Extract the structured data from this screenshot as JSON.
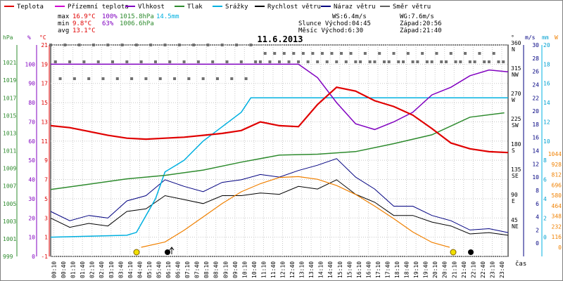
{
  "chart_data": {
    "type": "line",
    "title": "11.6.2013",
    "legend": [
      {
        "label": "Teplota",
        "color": "#e00000"
      },
      {
        "label": "Přízemní teplota",
        "color": "#d000d0"
      },
      {
        "label": "Vlhkost",
        "color": "#8000c0"
      },
      {
        "label": "Tlak",
        "color": "#2e8b2e"
      },
      {
        "label": "Srážky",
        "color": "#00b0e0"
      },
      {
        "label": "Rychlost větru",
        "color": "#000000"
      },
      {
        "label": "Náraz větru",
        "color": "#000080"
      },
      {
        "label": "Směr větru",
        "color": "#606060"
      }
    ],
    "stats": {
      "max_label": "max",
      "max_temp": "16.9°C",
      "max_hum": "100%",
      "max_press": "1015.8hPa",
      "rain": "14.5mm",
      "min_label": "min",
      "min_temp": "9.8°C",
      "min_hum": "63%",
      "min_press": "1006.6hPa",
      "avg_label": "avg",
      "avg_temp": "13.1°C",
      "ws": "WS:6.4m/s",
      "wg": "WG:7.6m/s",
      "sun": "Slunce Východ:04:45",
      "sun_set": "Západ:20:56",
      "moon": "Měsíc Východ:6:30",
      "moon_set": "Západ:21:40"
    },
    "axis_units": {
      "hpa": "hPa",
      "pct": "%",
      "celsius": "°C",
      "deg": "°",
      "ms": "m/s",
      "mm": "mm",
      "w": "W",
      "cas": "čas"
    },
    "hpa_ticks": [
      "1021",
      "1019",
      "1017",
      "1015",
      "1013",
      "1011",
      "1009",
      "1007",
      "1005",
      "1003",
      "1001",
      "999"
    ],
    "pct_ticks": [
      "100",
      "90",
      "80",
      "70",
      "60",
      "50",
      "40",
      "30",
      "20",
      "10",
      "0"
    ],
    "c_ticks": [
      "21",
      "19",
      "17",
      "15",
      "13",
      "11",
      "9",
      "7",
      "5",
      "3",
      "1",
      "-1"
    ],
    "deg_ticks": [
      "360",
      "315",
      "270",
      "225",
      "180",
      "135",
      "90",
      "45",
      ""
    ],
    "dir_ticks": [
      "N",
      "NW",
      "W",
      "SW",
      "S",
      "SE",
      "E",
      "NE",
      ""
    ],
    "ms_ticks": [
      "30",
      "28",
      "26",
      "24",
      "22",
      "20",
      "18",
      "16",
      "14",
      "12",
      "10",
      "8",
      "6",
      "4",
      "2",
      "0"
    ],
    "mm_ticks": [
      "20",
      "18",
      "16",
      "14",
      "12",
      "10",
      "8",
      "6",
      "4",
      "2",
      "0"
    ],
    "w_ticks": [
      "1044",
      "928",
      "812",
      "696",
      "580",
      "464",
      "348",
      "232",
      "116",
      "0"
    ],
    "x_ticks": [
      "00:10",
      "00:40",
      "01:10",
      "01:40",
      "02:10",
      "02:40",
      "03:10",
      "03:40",
      "04:10",
      "04:40",
      "05:10",
      "05:40",
      "06:10",
      "06:40",
      "07:10",
      "07:40",
      "08:10",
      "08:40",
      "09:10",
      "09:40",
      "10:10",
      "10:40",
      "11:10",
      "11:40",
      "12:10",
      "12:40",
      "13:10",
      "13:40",
      "14:10",
      "14:40",
      "15:10",
      "15:40",
      "16:10",
      "16:40",
      "17:10",
      "17:40",
      "18:10",
      "18:40",
      "19:10",
      "19:40",
      "20:10",
      "20:40",
      "21:10",
      "21:40",
      "22:10",
      "22:40",
      "23:10",
      "23:40"
    ],
    "series": [
      {
        "name": "Teplota",
        "unit": "°C",
        "color": "#e00000",
        "x": [
          0,
          1,
          2,
          3,
          4,
          5,
          6,
          7,
          8,
          9,
          10,
          11,
          12,
          13,
          14,
          15,
          16,
          17,
          18,
          19,
          20,
          21,
          22,
          23,
          24
        ],
        "y": [
          12.6,
          12.4,
          12.0,
          11.6,
          11.3,
          11.2,
          11.3,
          11.4,
          11.6,
          11.8,
          12.1,
          13.0,
          12.6,
          12.5,
          14.8,
          16.6,
          16.2,
          15.2,
          14.6,
          13.7,
          12.3,
          10.8,
          10.2,
          9.9,
          9.8
        ]
      },
      {
        "name": "Vlhkost",
        "unit": "%",
        "color": "#8000c0",
        "x": [
          0,
          1,
          2,
          3,
          4,
          5,
          6,
          7,
          8,
          9,
          10,
          11,
          12,
          13,
          14,
          15,
          16,
          17,
          18,
          19,
          20,
          21,
          22,
          23,
          24
        ],
        "y": [
          100,
          100,
          100,
          100,
          100,
          100,
          100,
          100,
          100,
          100,
          100,
          100,
          100,
          100,
          93,
          80,
          69,
          66,
          70,
          75,
          84,
          88,
          94,
          97,
          96
        ]
      },
      {
        "name": "Tlak",
        "unit": "hPa",
        "color": "#2e8b2e",
        "x": [
          0,
          2,
          4,
          6,
          8,
          10,
          12,
          14,
          16,
          18,
          20,
          22,
          23.8
        ],
        "y": [
          1006.6,
          1007.2,
          1007.8,
          1008.2,
          1008.8,
          1009.7,
          1010.5,
          1010.6,
          1010.9,
          1011.8,
          1012.8,
          1014.8,
          1015.3
        ]
      },
      {
        "name": "Srážky",
        "unit": "mm",
        "color": "#00b0e0",
        "x": [
          0,
          2,
          4,
          4.5,
          5.5,
          6,
          7,
          7.5,
          8,
          9,
          10,
          10.5,
          24
        ],
        "y": [
          0,
          0.1,
          0.2,
          0.5,
          4.0,
          6.8,
          8.0,
          9.0,
          10.0,
          11.5,
          13.0,
          14.5,
          14.5
        ]
      },
      {
        "name": "Rychlost větru",
        "unit": "m/s",
        "color": "#000000",
        "x": [
          0,
          1,
          2,
          3,
          4,
          5,
          6,
          7,
          8,
          9,
          10,
          11,
          12,
          13,
          14,
          15,
          16,
          17,
          18,
          19,
          20,
          21,
          22,
          23,
          24
        ],
        "y": [
          3.8,
          2.4,
          3.0,
          2.6,
          4.8,
          5.2,
          7.2,
          6.6,
          6.0,
          7.2,
          7.2,
          7.6,
          7.4,
          8.6,
          8.2,
          9.6,
          7.4,
          6.2,
          4.2,
          4.2,
          3.2,
          2.6,
          1.4,
          1.6,
          1.2
        ]
      },
      {
        "name": "Náraz větru",
        "unit": "m/s",
        "color": "#000080",
        "x": [
          0,
          1,
          2,
          3,
          4,
          5,
          6,
          7,
          8,
          9,
          10,
          11,
          12,
          13,
          14,
          15,
          16,
          17,
          18,
          19,
          20,
          21,
          22,
          23,
          24
        ],
        "y": [
          4.8,
          3.4,
          4.2,
          3.8,
          6.4,
          7.2,
          9.6,
          8.6,
          7.8,
          9.2,
          9.6,
          10.4,
          10.0,
          11.0,
          11.8,
          12.8,
          10.0,
          8.2,
          5.6,
          5.6,
          4.2,
          3.4,
          2.0,
          2.2,
          1.6
        ]
      },
      {
        "name": "Slunce",
        "unit": "W",
        "color": "#f08000",
        "x": [
          4.75,
          6,
          7,
          8,
          9,
          10,
          11,
          12,
          13,
          14,
          15,
          16,
          17,
          18,
          19,
          20,
          20.93
        ],
        "y": [
          0,
          60,
          190,
          340,
          490,
          620,
          710,
          780,
          790,
          760,
          690,
          590,
          460,
          320,
          170,
          55,
          0
        ]
      }
    ]
  }
}
